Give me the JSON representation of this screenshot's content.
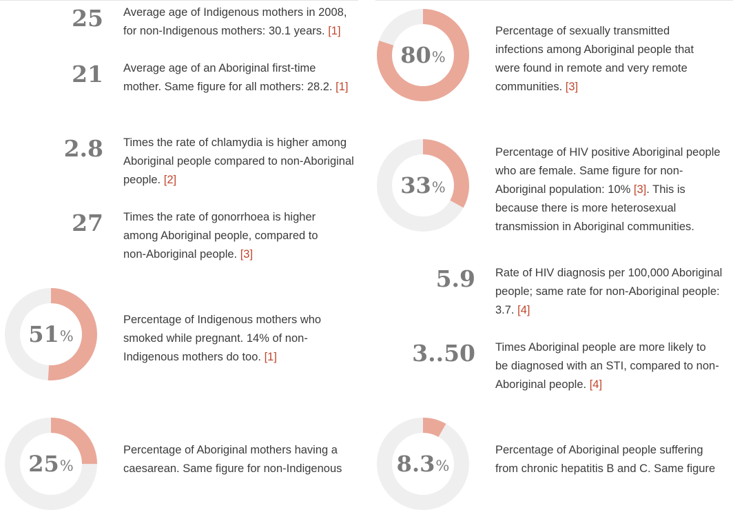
{
  "left_column": [
    {
      "figure": "25",
      "text": "Average age of Indigenous mothers in 2008, for non-Indigenous mothers: 30.1 years.",
      "ref": "[1]"
    },
    {
      "figure": "21",
      "text": "Average age of an Aboriginal first-time mother. Same figure for all mothers: 28.2.",
      "ref": "[1]"
    },
    {
      "figure": "2.8",
      "text": "Times the rate of chlamydia is higher among Aboriginal people compared to non-Aboriginal people.",
      "ref": "[2]"
    },
    {
      "figure": "27",
      "text": "Times the rate of gonorrhoea is higher among Aboriginal people, compared to non-Aboriginal people.",
      "ref": "[3]"
    },
    {
      "figure": "51",
      "unit": "%",
      "percent": 51,
      "text": "Percentage of Indigenous mothers who smoked while pregnant. 14% of non-Indigenous mothers do too.",
      "ref": "[1]"
    },
    {
      "figure": "25",
      "unit": "%",
      "percent": 25,
      "text": "Percentage of Aboriginal mothers having a caesarean. Same figure for non-Indigenous",
      "ref": ""
    }
  ],
  "right_column": [
    {
      "figure": "80",
      "unit": "%",
      "percent": 80,
      "text": "Percentage of sexually transmitted infections among Aboriginal people that were found in remote and very remote communities.",
      "ref": "[3]"
    },
    {
      "figure": "33",
      "unit": "%",
      "percent": 33,
      "text": "Percentage of HIV positive Aboriginal people who are female. Same figure for non-Aboriginal population: 10%",
      "ref": "[3]",
      "text_after": ". This is because there is more heterosexual transmission in Aboriginal communities."
    },
    {
      "figure": "5.9",
      "text": "Rate of HIV diagnosis per 100,000 Aboriginal people; same rate for non-Aboriginal people: 3.7.",
      "ref": "[4]"
    },
    {
      "figure": "3..50",
      "text": "Times Aboriginal people are more likely to be diagnosed with an STI, compared to non-Aboriginal people.",
      "ref": "[4]"
    },
    {
      "figure": "8.3",
      "unit": "%",
      "percent": 8.3,
      "text": "Percentage of Aboriginal people suffering from chronic hepatitis B and C. Same figure",
      "ref": ""
    }
  ],
  "colors": {
    "ring_fill": "#eaa899",
    "ring_track": "#efefef",
    "figure": "#7b7b7b",
    "reference": "#c0452b"
  }
}
